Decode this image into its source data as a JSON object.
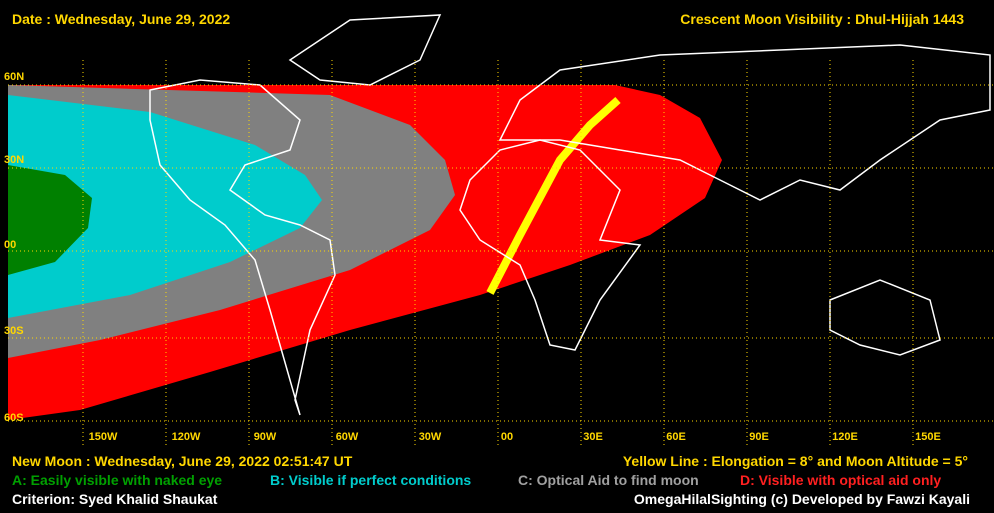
{
  "header": {
    "date": "Date : Wednesday, June 29, 2022",
    "title": "Crescent Moon Visibility : Dhul-Hijjah  1443"
  },
  "latitudes": [
    "60N",
    "30N",
    "00",
    "30S",
    "60S"
  ],
  "longitudes": [
    "150W",
    "120W",
    "90W",
    "60W",
    "30W",
    "00",
    "30E",
    "60E",
    "90E",
    "120E",
    "150E"
  ],
  "footer": {
    "new_moon": "New Moon : Wednesday, June 29, 2022  02:51:47  UT",
    "yellow_line": "Yellow Line : Elongation = 8° and Moon Altitude = 5°",
    "criterion": "Criterion: Syed Khalid Shaukat",
    "credit": "OmegaHilalSighting  (c)  Developed by Fawzi Kayali"
  },
  "legend": [
    "A: Easily visible with naked eye",
    "B: Visible if perfect conditions",
    "C: Optical Aid to find moon",
    "D: Visible with optical aid only"
  ]
}
